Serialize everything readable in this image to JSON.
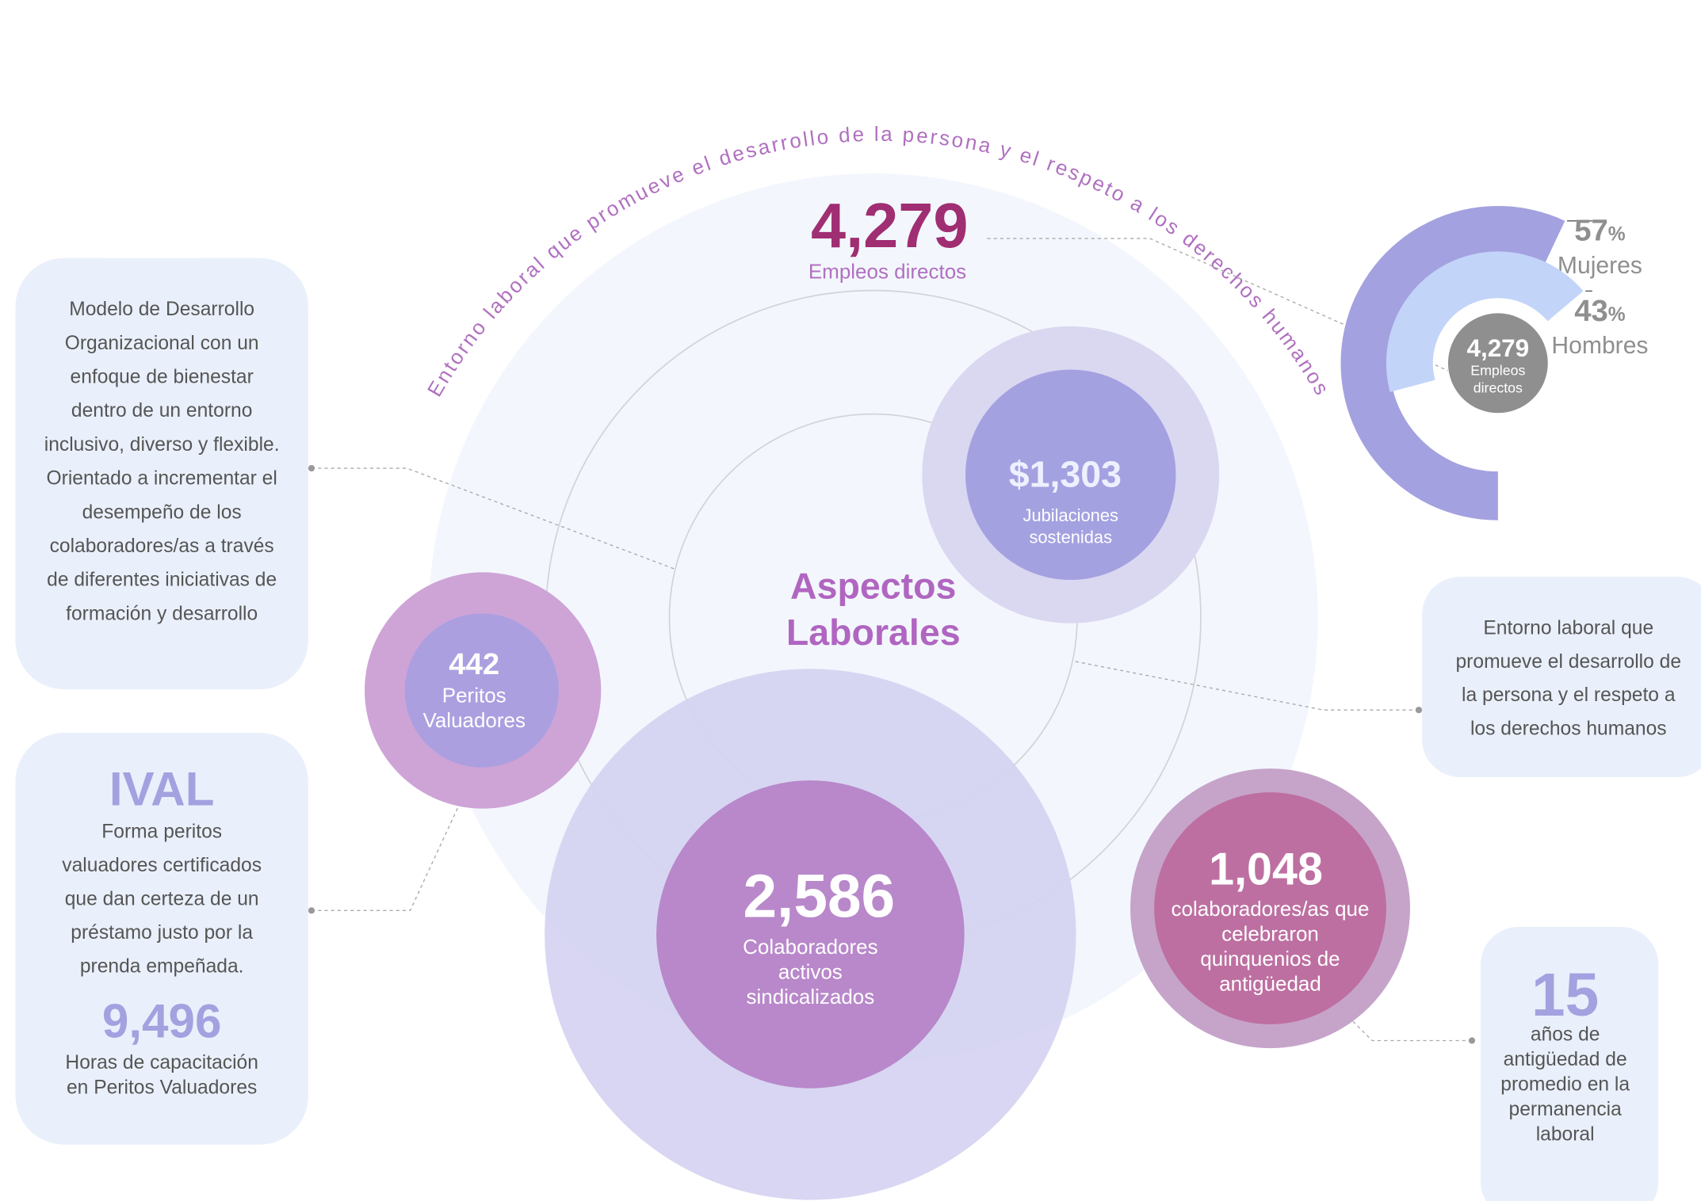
{
  "arc_title": "Entorno laboral que promueve el desarrollo de la persona y el respeto a los derechos humanos",
  "headline": {
    "value": "4,279",
    "label": "Empleos directos"
  },
  "center_title": [
    "Aspectos",
    "Laborales"
  ],
  "bubbles": {
    "pensions": {
      "value": "$1,303",
      "lines": [
        "Jubilaciones",
        "sostenidas"
      ]
    },
    "appraisers": {
      "value": "442",
      "lines": [
        "Peritos",
        "Valuadores"
      ]
    },
    "union": {
      "value": "2,586",
      "lines": [
        "Colaboradores",
        "activos",
        "sindicalizados"
      ]
    },
    "seniority": {
      "value": "1,048",
      "lines": [
        "colaboradores/as que",
        "celebraron",
        "quinquenios de",
        "antigüedad"
      ]
    }
  },
  "donut": {
    "center_value": "4,279",
    "center_lines": [
      "Empleos",
      "directos"
    ],
    "segments": [
      {
        "value": 57,
        "unit": "%",
        "label": "Mujeres",
        "color": "#a4a1e0"
      },
      {
        "value": 43,
        "unit": "%",
        "label": "Hombres",
        "color": "#c2d4f8"
      }
    ]
  },
  "boxes": {
    "model": {
      "lines": [
        "Modelo de Desarrollo",
        "Organizacional con un",
        "enfoque de bienestar",
        "dentro de un entorno",
        "inclusivo, diverso y flexible.",
        "Orientado a incrementar el",
        "desempeño de los",
        "colaboradores/as a través",
        "de diferentes iniciativas de",
        "formación y desarrollo"
      ]
    },
    "ival": {
      "title": "IVAL",
      "lines": [
        "Forma peritos",
        "valuadores certificados",
        "que dan certeza de un",
        "préstamo justo por la",
        "prenda empeñada."
      ],
      "value": "9,496",
      "value_lines": [
        "Horas de capacitación",
        "en Peritos Valuadores"
      ]
    },
    "environment": {
      "lines": [
        "Entorno laboral que",
        "promueve el desarrollo de",
        "la persona y el respeto a",
        "los derechos humanos"
      ]
    },
    "years": {
      "value": "15",
      "lines": [
        "años de",
        "antigüedad de",
        "promedio en la",
        "permanencia",
        "laboral"
      ]
    }
  }
}
